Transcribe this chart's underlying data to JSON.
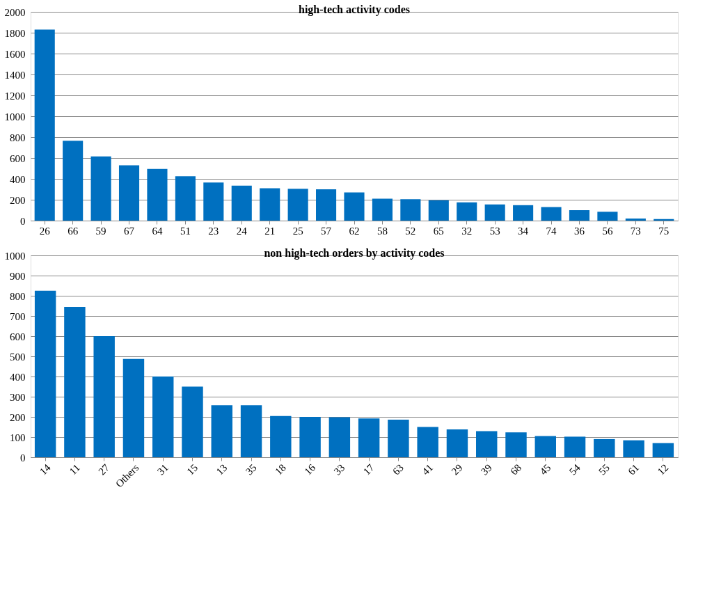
{
  "chart_data": [
    {
      "type": "bar",
      "title": "high-tech activity codes",
      "categories": [
        "26",
        "66",
        "59",
        "67",
        "64",
        "51",
        "23",
        "24",
        "21",
        "25",
        "57",
        "62",
        "58",
        "52",
        "65",
        "32",
        "53",
        "34",
        "74",
        "36",
        "56",
        "73",
        "75"
      ],
      "values": [
        1830,
        765,
        615,
        530,
        495,
        425,
        365,
        335,
        310,
        305,
        300,
        270,
        210,
        205,
        195,
        175,
        155,
        148,
        130,
        100,
        85,
        20,
        15
      ],
      "color": "#0070c0",
      "ylim": [
        0,
        2000
      ],
      "yticks": [
        0,
        200,
        400,
        600,
        800,
        1000,
        1200,
        1400,
        1600,
        1800,
        2000
      ],
      "grid": "y"
    },
    {
      "type": "bar",
      "title": "non high-tech orders by activity codes",
      "categories": [
        "14",
        "11",
        "27",
        "Others",
        "31",
        "15",
        "13",
        "35",
        "18",
        "16",
        "33",
        "17",
        "63",
        "41",
        "29",
        "39",
        "68",
        "45",
        "54",
        "55",
        "61",
        "12"
      ],
      "values": [
        825,
        745,
        600,
        487,
        400,
        350,
        258,
        258,
        204,
        200,
        198,
        192,
        186,
        150,
        138,
        129,
        123,
        105,
        102,
        90,
        84,
        70
      ],
      "color": "#0070c0",
      "ylim": [
        0,
        1000
      ],
      "yticks": [
        0,
        100,
        200,
        300,
        400,
        500,
        600,
        700,
        800,
        900,
        1000
      ],
      "grid": "y"
    }
  ]
}
